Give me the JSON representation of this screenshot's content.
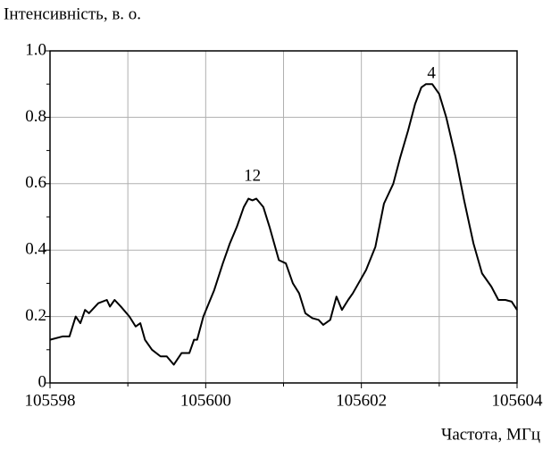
{
  "chart_data": {
    "type": "line",
    "ylabel": "Інтенсивність, в. о.",
    "xlabel": "Частота, МГц",
    "series": [
      {
        "color": "#000000",
        "x": [
          105598,
          105598.16,
          105598.25,
          105598.33,
          105598.39,
          105598.45,
          105598.5,
          105598.62,
          105598.73,
          105598.77,
          105598.83,
          105598.91,
          105599.02,
          105599.1,
          105599.16,
          105599.22,
          105599.31,
          105599.42,
          105599.5,
          105599.59,
          105599.69,
          105599.79,
          105599.85,
          105599.89,
          105599.97,
          105600.11,
          105600.22,
          105600.31,
          105600.4,
          105600.49,
          105600.55,
          105600.6,
          105600.65,
          105600.74,
          105600.82,
          105600.88,
          105600.94,
          105601.03,
          105601.12,
          105601.2,
          105601.28,
          105601.37,
          105601.45,
          105601.51,
          105601.6,
          105601.68,
          105601.75,
          105601.83,
          105601.89,
          105602.06,
          105602.18,
          105602.29,
          105602.41,
          105602.5,
          105602.6,
          105602.69,
          105602.77,
          105602.83,
          105602.91,
          105603,
          105603.09,
          105603.21,
          105603.32,
          105603.44,
          105603.55,
          105603.67,
          105603.76,
          105603.85,
          105603.93,
          105604
        ],
        "values": [
          0.13,
          0.14,
          0.14,
          0.2,
          0.18,
          0.22,
          0.21,
          0.24,
          0.25,
          0.23,
          0.25,
          0.23,
          0.2,
          0.17,
          0.18,
          0.13,
          0.1,
          0.08,
          0.08,
          0.055,
          0.09,
          0.09,
          0.13,
          0.13,
          0.2,
          0.28,
          0.36,
          0.42,
          0.47,
          0.53,
          0.555,
          0.55,
          0.555,
          0.53,
          0.47,
          0.42,
          0.37,
          0.36,
          0.3,
          0.27,
          0.21,
          0.195,
          0.19,
          0.175,
          0.19,
          0.26,
          0.22,
          0.25,
          0.27,
          0.34,
          0.41,
          0.54,
          0.6,
          0.68,
          0.76,
          0.84,
          0.89,
          0.9,
          0.9,
          0.87,
          0.8,
          0.68,
          0.55,
          0.42,
          0.33,
          0.29,
          0.25,
          0.25,
          0.245,
          0.22
        ]
      }
    ],
    "xlim": [
      105598,
      105604
    ],
    "xticks": [
      105598,
      105600,
      105602,
      105604
    ],
    "xminor": [
      105599,
      105601,
      105603
    ],
    "ylim": [
      0,
      1
    ],
    "yticks": [
      0,
      0.2,
      0.4,
      0.6,
      0.8,
      {
        "value": 1,
        "label": "1.0"
      }
    ],
    "yminor": [
      0.1,
      0.3,
      0.5,
      0.7,
      0.9
    ],
    "grid": true,
    "annotations": [
      {
        "text": "12",
        "x": 105600.6,
        "y": 0.62
      },
      {
        "text": "4",
        "x": 105602.9,
        "y": 0.93
      }
    ]
  }
}
